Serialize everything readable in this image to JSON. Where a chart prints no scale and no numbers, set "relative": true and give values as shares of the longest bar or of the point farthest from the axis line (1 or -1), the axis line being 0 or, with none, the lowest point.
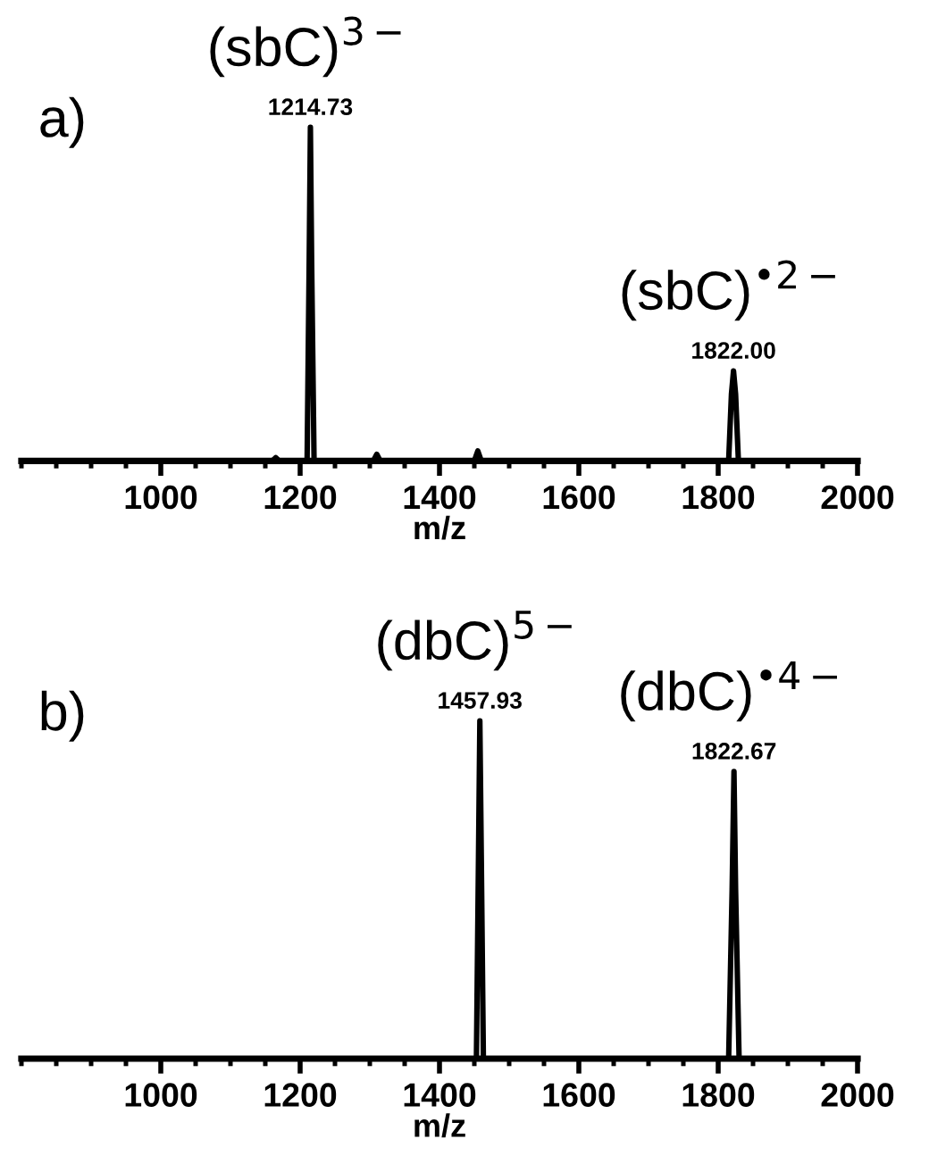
{
  "chart_data": [
    {
      "type": "line",
      "title": "a)",
      "xlabel": "m/z",
      "relative": true,
      "xlim": [
        800,
        2000
      ],
      "xticks": [
        1000,
        1200,
        1400,
        1600,
        1800,
        2000
      ],
      "grid": false,
      "marker": "none",
      "line_style": "solid",
      "series": [
        {
          "color": "#000000",
          "x": [
            800,
            1160,
            1165,
            1170,
            1210,
            1213,
            1214.73,
            1216.5,
            1220,
            1305,
            1310,
            1315,
            1450,
            1455,
            1460,
            1815,
            1819,
            1822.0,
            1825,
            1829,
            2000
          ],
          "values": [
            0,
            0,
            0.01,
            0,
            0,
            0.6,
            1,
            0.6,
            0,
            0,
            0.02,
            0,
            0,
            0.03,
            0,
            0,
            0.2,
            0.27,
            0.2,
            0,
            0
          ]
        }
      ],
      "annotations": [
        {
          "text": "(sbC)$^{3−}$",
          "x": 1214.73,
          "y": 1
        },
        {
          "text": "1214.73",
          "x": 1214.73,
          "y": 1
        },
        {
          "text": "(sbC)$^{•2−}$",
          "x": 1822.0,
          "y": 0.27
        },
        {
          "text": "1822.00",
          "x": 1822.0,
          "y": 0.27
        }
      ]
    },
    {
      "type": "line",
      "title": "b)",
      "xlabel": "m/z",
      "relative": true,
      "xlim": [
        800,
        2000
      ],
      "xticks": [
        1000,
        1200,
        1400,
        1600,
        1800,
        2000
      ],
      "grid": false,
      "marker": "none",
      "line_style": "solid",
      "series": [
        {
          "color": "#000000",
          "x": [
            800,
            1453,
            1456,
            1457.93,
            1460,
            1463,
            1815,
            1820,
            1822.67,
            1825,
            1830,
            2000
          ],
          "values": [
            0,
            0,
            0.6,
            1,
            0.6,
            0,
            0,
            0.5,
            0.85,
            0.5,
            0,
            0
          ]
        }
      ],
      "annotations": [
        {
          "text": "(dbC)$^{5−}$",
          "x": 1457.93,
          "y": 1
        },
        {
          "text": "1457.93",
          "x": 1457.93,
          "y": 1
        },
        {
          "text": "(dbC)$^{•4−}$",
          "x": 1822.67,
          "y": 0.85
        },
        {
          "text": "1822.67",
          "x": 1822.67,
          "y": 0.85
        }
      ]
    }
  ]
}
